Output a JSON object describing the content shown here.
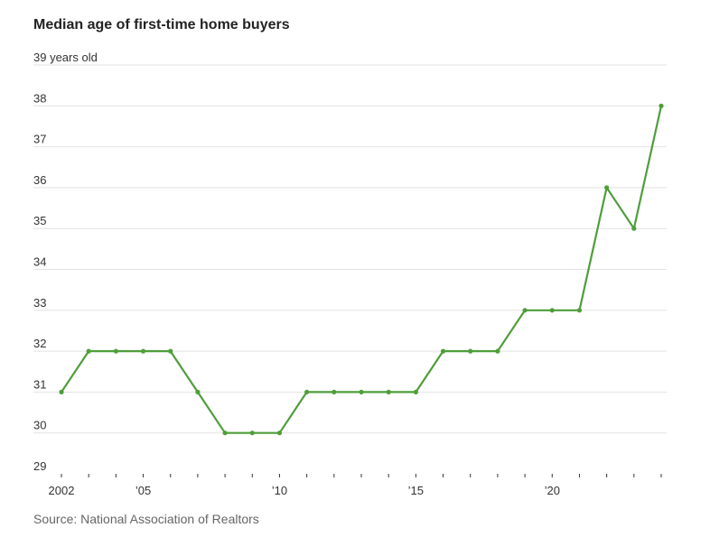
{
  "title": "Median age of first-time home buyers",
  "source": "Source: National Association of Realtors",
  "colors": {
    "series": "#4f9e3a",
    "grid": "#e2e2e2",
    "text": "#333333"
  },
  "chart_data": {
    "type": "line",
    "title": "Median age of first-time home buyers",
    "xlabel": "",
    "ylabel": "",
    "ylim": [
      29,
      39
    ],
    "xlim": [
      2002,
      2024
    ],
    "grid": true,
    "y_ticks": [
      {
        "value": 39,
        "label": "39 years old"
      },
      {
        "value": 38,
        "label": "38"
      },
      {
        "value": 37,
        "label": "37"
      },
      {
        "value": 36,
        "label": "36"
      },
      {
        "value": 35,
        "label": "35"
      },
      {
        "value": 34,
        "label": "34"
      },
      {
        "value": 33,
        "label": "33"
      },
      {
        "value": 32,
        "label": "32"
      },
      {
        "value": 31,
        "label": "31"
      },
      {
        "value": 30,
        "label": "30"
      },
      {
        "value": 29,
        "label": "29"
      }
    ],
    "x_tick_labels": [
      {
        "value": 2002,
        "label": "2002"
      },
      {
        "value": 2005,
        "label": "’05"
      },
      {
        "value": 2010,
        "label": "’10"
      },
      {
        "value": 2015,
        "label": "’15"
      },
      {
        "value": 2020,
        "label": "’20"
      }
    ],
    "x": [
      2002,
      2003,
      2004,
      2005,
      2006,
      2007,
      2008,
      2009,
      2010,
      2011,
      2012,
      2013,
      2014,
      2015,
      2016,
      2017,
      2018,
      2019,
      2020,
      2021,
      2022,
      2023,
      2024
    ],
    "series": [
      {
        "values": [
          31,
          32,
          32,
          32,
          32,
          31,
          30,
          30,
          30,
          31,
          31,
          31,
          31,
          31,
          32,
          32,
          32,
          33,
          33,
          33,
          36,
          35,
          38
        ]
      }
    ]
  }
}
